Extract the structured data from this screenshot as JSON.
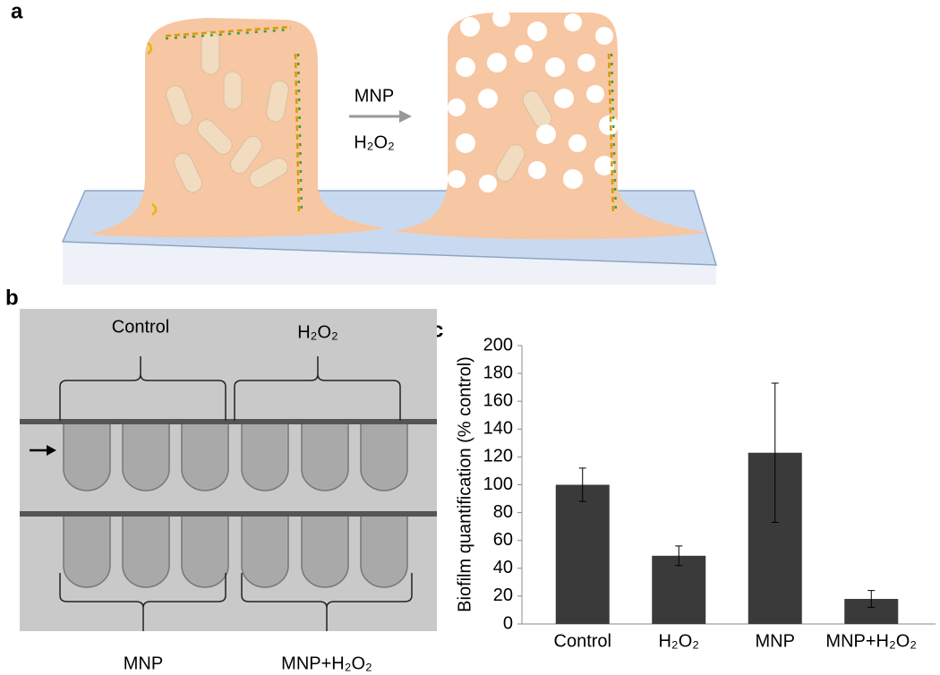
{
  "panel_labels": [
    "a",
    "b",
    "c"
  ],
  "panel_a": {
    "arrow_top": "MNP",
    "arrow_bottom": "H₂O₂"
  },
  "panel_b": {
    "top_labels": [
      "Control",
      "H₂O₂"
    ],
    "bottom_labels": [
      "MNP",
      "MNP+H₂O₂"
    ]
  },
  "chart_data": {
    "type": "bar",
    "y_label": "Biofilm quantification (% control)",
    "categories": [
      "Control",
      "H₂O₂",
      "MNP",
      "MNP+H₂O₂"
    ],
    "values": [
      100,
      49,
      123,
      18
    ],
    "errors": [
      12,
      7,
      50,
      6
    ],
    "color": "#3a3a3a",
    "ylim": [
      0,
      200
    ],
    "yticks": [
      0,
      20,
      40,
      60,
      80,
      100,
      120,
      140,
      160,
      180,
      200
    ]
  }
}
